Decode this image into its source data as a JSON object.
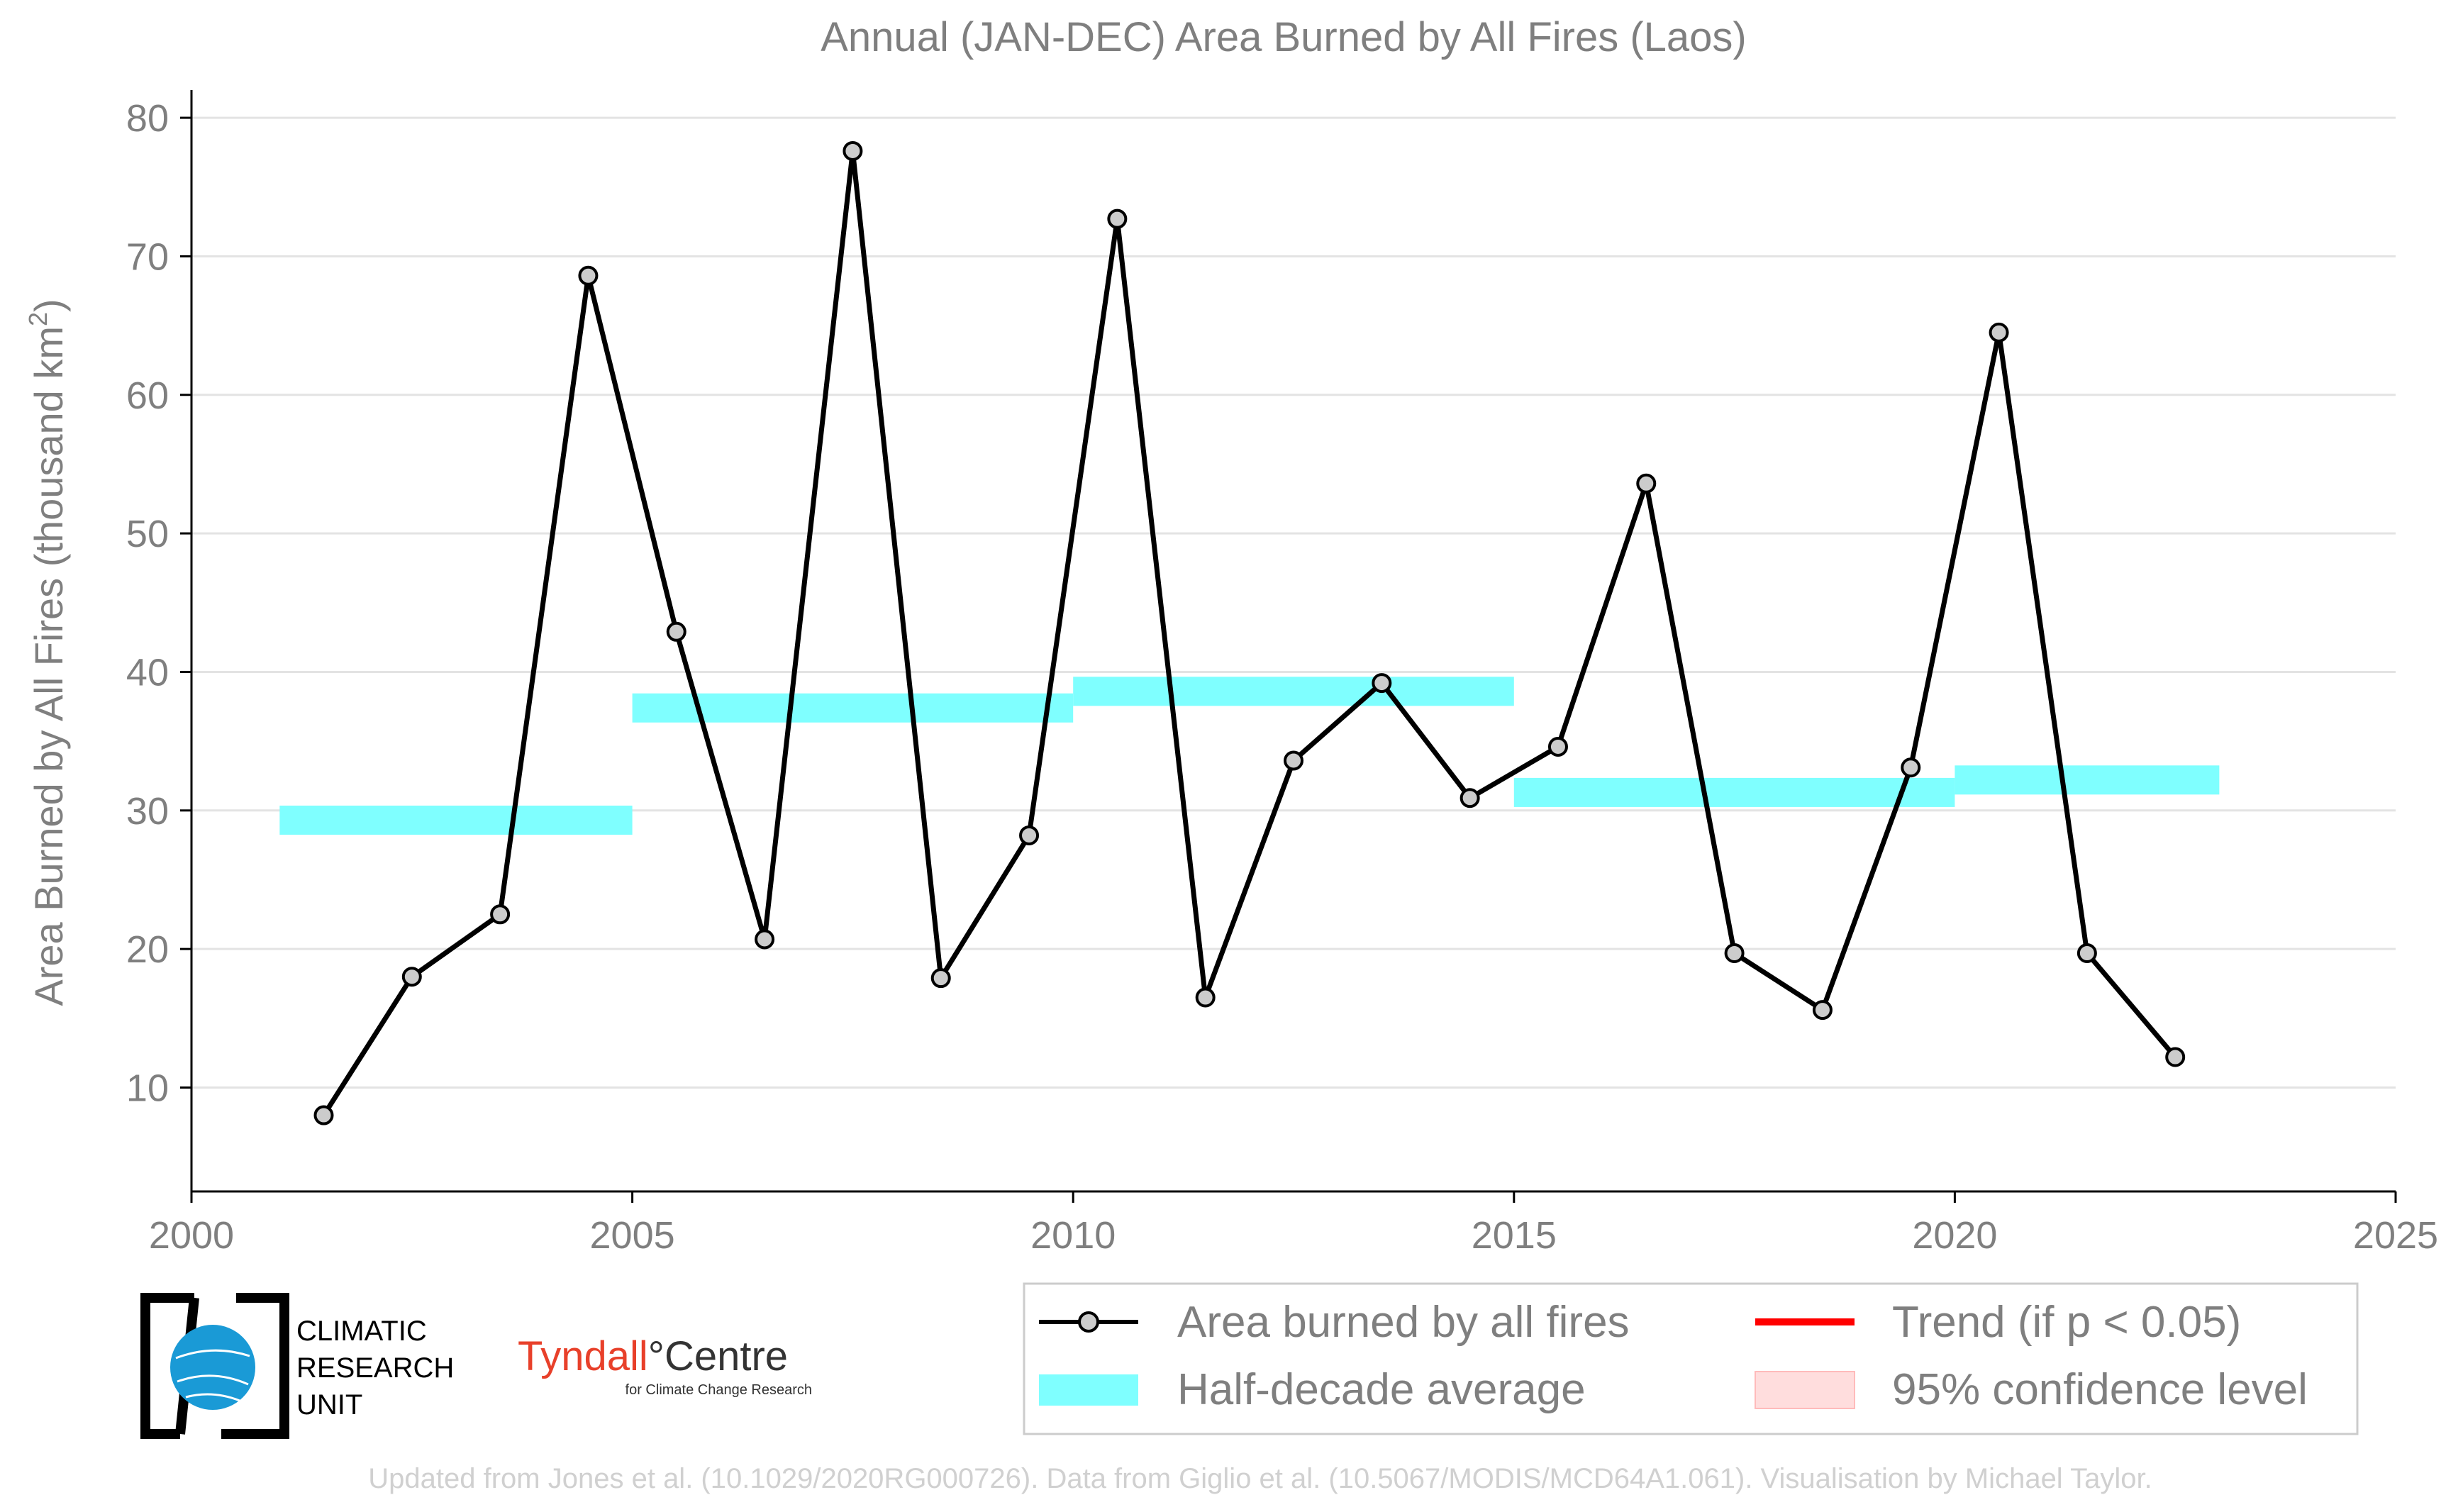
{
  "chart_data": {
    "type": "line",
    "title": "Annual (JAN-DEC) Area Burned by All Fires (Laos)",
    "ylabel": "Area Burned by All Fires (thousand km",
    "ylabel_sup": "2",
    "ylabel_close": ")",
    "xlim": [
      2000,
      2025
    ],
    "ylim": [
      2.5,
      82
    ],
    "xticks": [
      2000,
      2005,
      2010,
      2015,
      2020,
      2025
    ],
    "yticks": [
      10,
      20,
      30,
      40,
      50,
      60,
      70,
      80
    ],
    "grid": "horizontal",
    "legend_placement": "bottom-right",
    "series": [
      {
        "name": "Area burned by all fires",
        "color": "#000000",
        "x": [
          2001.5,
          2002.5,
          2003.5,
          2004.5,
          2005.5,
          2006.5,
          2007.5,
          2008.5,
          2009.5,
          2010.5,
          2011.5,
          2012.5,
          2013.5,
          2014.5,
          2015.5,
          2016.5,
          2017.5,
          2018.5,
          2019.5,
          2020.5,
          2021.5,
          2022.5
        ],
        "y": [
          8.0,
          18.0,
          22.5,
          68.6,
          42.9,
          20.7,
          77.6,
          17.9,
          28.2,
          72.7,
          16.5,
          33.6,
          39.2,
          30.9,
          34.6,
          53.6,
          19.7,
          15.6,
          33.1,
          64.5,
          19.7,
          12.2
        ]
      }
    ],
    "half_decade_average": {
      "name": "Half-decade average",
      "color": "#7fffff",
      "segments": [
        {
          "x0": 2001,
          "x1": 2005,
          "y": 29.3
        },
        {
          "x0": 2005,
          "x1": 2010,
          "y": 37.4
        },
        {
          "x0": 2010,
          "x1": 2015,
          "y": 38.6
        },
        {
          "x0": 2015,
          "x1": 2020,
          "y": 31.3
        },
        {
          "x0": 2020,
          "x1": 2023,
          "y": 32.2
        }
      ]
    },
    "legend": [
      {
        "label": "Area burned by all fires",
        "kind": "line-marker",
        "color": "#000000"
      },
      {
        "label": "Trend (if p < 0.05)",
        "kind": "line",
        "color": "#ff0000"
      },
      {
        "label": "Half-decade average",
        "kind": "band",
        "color": "#7fffff"
      },
      {
        "label": "95% confidence level",
        "kind": "band",
        "color": "#ffdddd"
      }
    ]
  },
  "logos": {
    "cru_lines": [
      "CLIMATIC",
      "RESEARCH",
      "UNIT"
    ],
    "tyndall_main": "Tyndall",
    "tyndall_centre": "°Centre",
    "tyndall_sub": "for Climate Change Research"
  },
  "credit": "Updated from Jones et al. (10.1029/2020RG000726). Data from Giglio et al. (10.5067/MODIS/MCD64A1.061). Visualisation by Michael Taylor."
}
